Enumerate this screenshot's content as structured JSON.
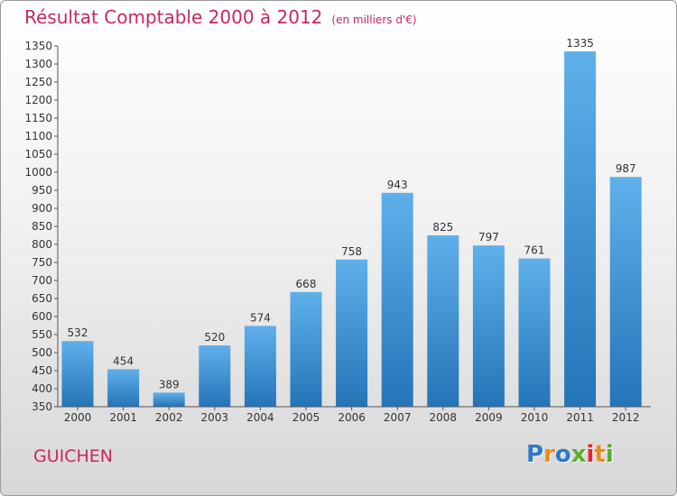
{
  "title": "Résultat Comptable 2000 à 2012",
  "subtitle": "(en milliers d'€)",
  "place": "GUICHEN",
  "logo": {
    "letters": [
      "P",
      "r",
      "o",
      "x",
      "i",
      "t",
      "i"
    ],
    "colors": [
      "#2e78c8",
      "#f08a1c",
      "#2e78c8",
      "#56b030",
      "#e8232a",
      "#f08a1c",
      "#56b030"
    ]
  },
  "colors": {
    "accent": "#c8295a",
    "bar_top": "#5fb0ea",
    "bar_bottom": "#2474b8"
  },
  "chart_data": {
    "type": "bar",
    "categories": [
      "2000",
      "2001",
      "2002",
      "2003",
      "2004",
      "2005",
      "2006",
      "2007",
      "2008",
      "2009",
      "2010",
      "2011",
      "2012"
    ],
    "values": [
      532,
      454,
      389,
      520,
      574,
      668,
      758,
      943,
      825,
      797,
      761,
      1335,
      987
    ],
    "title": "Résultat Comptable 2000 à 2012",
    "ylim": [
      350,
      1350
    ],
    "ytick_step": 50,
    "grid": false
  }
}
